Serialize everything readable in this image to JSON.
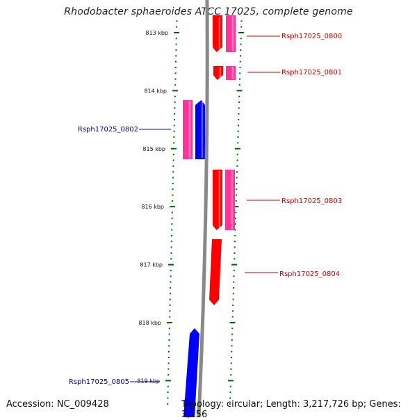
{
  "title": "Rhodobacter sphaeroides ATCC 17025, complete genome",
  "footer": {
    "accession": "Accession: NC_009428",
    "topology": "Topology: circular; Length: 3,217,726 bp; Genes: 3,156"
  },
  "colors": {
    "forward_cds": "#ff0000",
    "reverse_cds": "#0000ff",
    "gene_feature": "#ff3399",
    "backbone": "#888888",
    "ticks": "#006600",
    "forward_label": "#cc0000",
    "reverse_label": "#000099"
  },
  "ruler": {
    "unit": "kbp",
    "labels": [
      "813 kbp",
      "814 kbp",
      "815 kbp",
      "816 kbp",
      "817 kbp",
      "818 kbp",
      "819 kbp"
    ]
  },
  "genes": [
    {
      "name": "Rsph17025_0800",
      "strand": "forward"
    },
    {
      "name": "Rsph17025_0801",
      "strand": "forward"
    },
    {
      "name": "Rsph17025_0802",
      "strand": "reverse"
    },
    {
      "name": "Rsph17025_0803",
      "strand": "forward"
    },
    {
      "name": "Rsph17025_0804",
      "strand": "forward"
    },
    {
      "name": "Rsph17025_0805",
      "strand": "reverse"
    }
  ]
}
